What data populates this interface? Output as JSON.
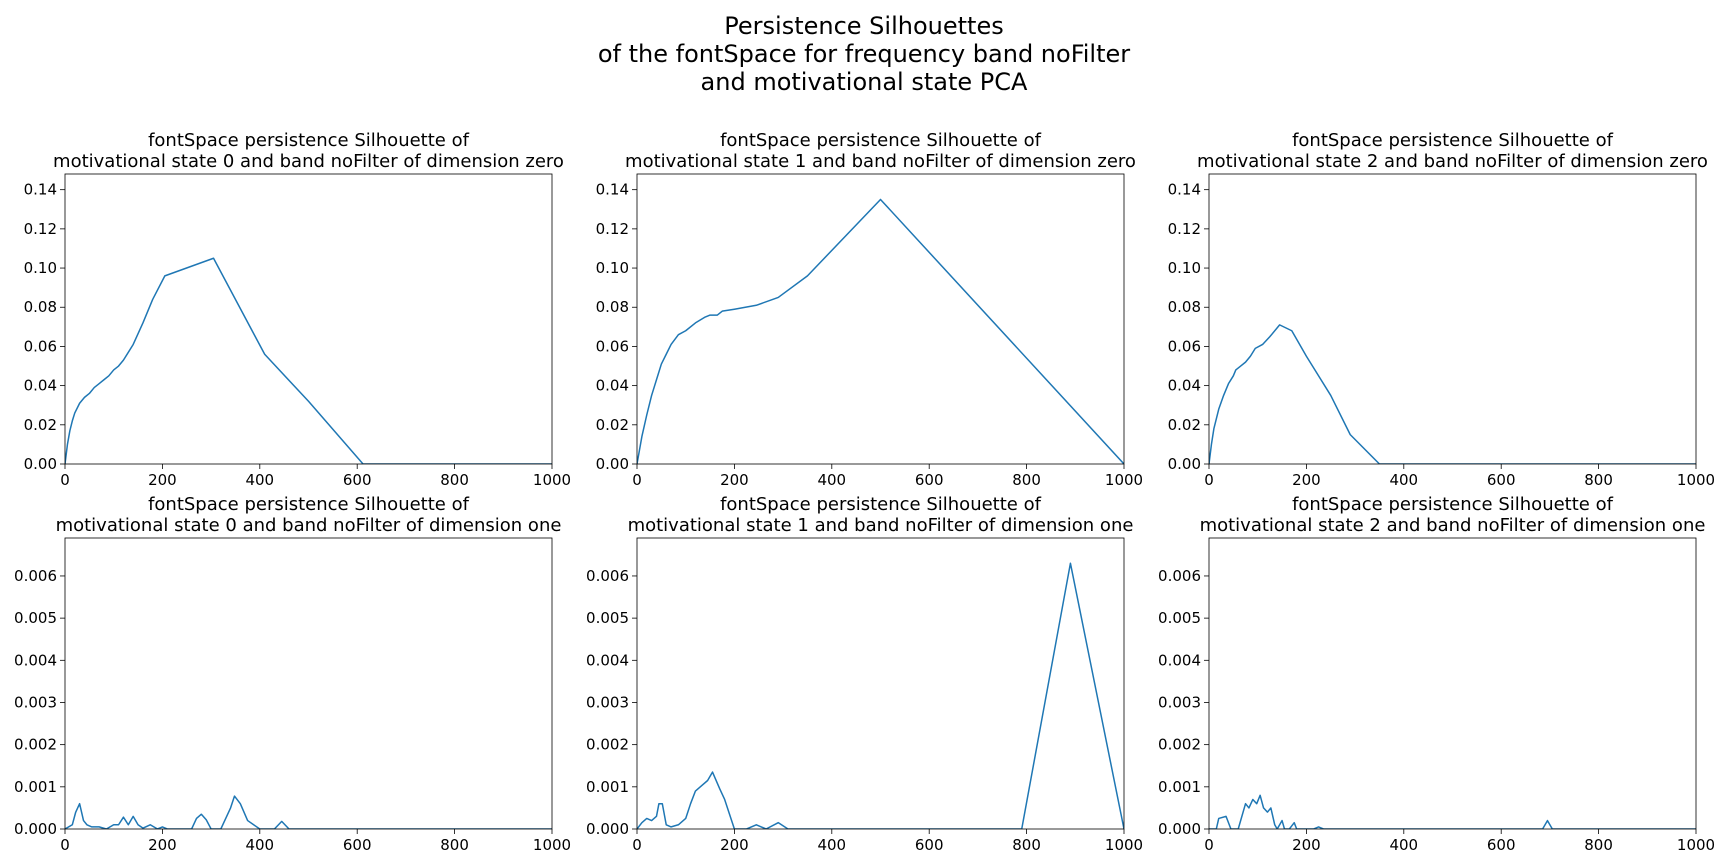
{
  "figure": {
    "suptitle_lines": [
      "Persistence Silhouettes",
      "of the fontSpace for frequency band noFilter",
      "and motivational state PCA"
    ],
    "line_color": "#1f77b4"
  },
  "chart_data": [
    {
      "type": "line",
      "title_lines": [
        "fontSpace persistence Silhouette of",
        "motivational state 0 and band noFilter of dimension zero"
      ],
      "xlim": [
        0,
        1000
      ],
      "ylim": [
        0,
        0.148
      ],
      "xticks": [
        0,
        200,
        400,
        600,
        800,
        1000
      ],
      "xtick_labels": [
        "0",
        "200",
        "400",
        "600",
        "800",
        "1000"
      ],
      "yticks": [
        0,
        0.02,
        0.04,
        0.06,
        0.08,
        0.1,
        0.12,
        0.14
      ],
      "ytick_labels": [
        "0.00",
        "0.02",
        "0.04",
        "0.06",
        "0.08",
        "0.10",
        "0.12",
        "0.14"
      ],
      "series": [
        {
          "x": [
            0,
            5,
            10,
            15,
            20,
            30,
            40,
            50,
            60,
            70,
            80,
            90,
            100,
            110,
            120,
            140,
            160,
            180,
            205,
            305,
            410,
            500,
            612,
            1000
          ],
          "y": [
            0,
            0.01,
            0.017,
            0.022,
            0.026,
            0.031,
            0.034,
            0.036,
            0.039,
            0.041,
            0.043,
            0.045,
            0.048,
            0.05,
            0.053,
            0.061,
            0.072,
            0.084,
            0.096,
            0.105,
            0.056,
            0.032,
            0,
            0
          ]
        }
      ]
    },
    {
      "type": "line",
      "title_lines": [
        "fontSpace persistence Silhouette of",
        "motivational state 1 and band noFilter of dimension zero"
      ],
      "xlim": [
        0,
        1000
      ],
      "ylim": [
        0,
        0.148
      ],
      "xticks": [
        0,
        200,
        400,
        600,
        800,
        1000
      ],
      "xtick_labels": [
        "0",
        "200",
        "400",
        "600",
        "800",
        "1000"
      ],
      "yticks": [
        0,
        0.02,
        0.04,
        0.06,
        0.08,
        0.1,
        0.12,
        0.14
      ],
      "ytick_labels": [
        "0.00",
        "0.02",
        "0.04",
        "0.06",
        "0.08",
        "0.10",
        "0.12",
        "0.14"
      ],
      "series": [
        {
          "x": [
            0,
            10,
            20,
            30,
            40,
            50,
            60,
            70,
            85,
            100,
            120,
            140,
            150,
            165,
            175,
            200,
            245,
            290,
            350,
            500,
            1000
          ],
          "y": [
            0,
            0.014,
            0.025,
            0.035,
            0.043,
            0.051,
            0.056,
            0.061,
            0.066,
            0.068,
            0.072,
            0.075,
            0.076,
            0.076,
            0.078,
            0.079,
            0.081,
            0.085,
            0.096,
            0.135,
            0
          ]
        }
      ]
    },
    {
      "type": "line",
      "title_lines": [
        "fontSpace persistence Silhouette of",
        "motivational state 2 and band noFilter of dimension zero"
      ],
      "xlim": [
        0,
        1000
      ],
      "ylim": [
        0,
        0.148
      ],
      "xticks": [
        0,
        200,
        400,
        600,
        800,
        1000
      ],
      "xtick_labels": [
        "0",
        "200",
        "400",
        "600",
        "800",
        "1000"
      ],
      "yticks": [
        0,
        0.02,
        0.04,
        0.06,
        0.08,
        0.1,
        0.12,
        0.14
      ],
      "ytick_labels": [
        "0.00",
        "0.02",
        "0.04",
        "0.06",
        "0.08",
        "0.10",
        "0.12",
        "0.14"
      ],
      "series": [
        {
          "x": [
            0,
            5,
            10,
            20,
            30,
            40,
            50,
            55,
            65,
            75,
            85,
            95,
            110,
            125,
            145,
            170,
            200,
            250,
            290,
            350,
            1000
          ],
          "y": [
            0,
            0.01,
            0.018,
            0.028,
            0.035,
            0.041,
            0.045,
            0.048,
            0.05,
            0.052,
            0.055,
            0.059,
            0.061,
            0.065,
            0.071,
            0.068,
            0.055,
            0.035,
            0.015,
            0,
            0
          ]
        }
      ]
    },
    {
      "type": "line",
      "title_lines": [
        "fontSpace persistence Silhouette of",
        "motivational state 0 and band noFilter of dimension one"
      ],
      "xlim": [
        0,
        1000
      ],
      "ylim": [
        0,
        0.0069
      ],
      "xticks": [
        0,
        200,
        400,
        600,
        800,
        1000
      ],
      "xtick_labels": [
        "0",
        "200",
        "400",
        "600",
        "800",
        "1000"
      ],
      "yticks": [
        0,
        0.001,
        0.002,
        0.003,
        0.004,
        0.005,
        0.006
      ],
      "ytick_labels": [
        "0.000",
        "0.001",
        "0.002",
        "0.003",
        "0.004",
        "0.005",
        "0.006"
      ],
      "series": [
        {
          "x": [
            0,
            15,
            22,
            30,
            38,
            45,
            55,
            70,
            85,
            100,
            110,
            120,
            130,
            140,
            150,
            160,
            175,
            190,
            200,
            210,
            260,
            270,
            280,
            290,
            300,
            320,
            340,
            348,
            360,
            375,
            400,
            430,
            445,
            460,
            480,
            1000
          ],
          "y": [
            0,
            0.0001,
            0.0004,
            0.0006,
            0.0002,
            0.0001,
            5e-05,
            5e-05,
            0,
            0.0001,
            0.0001,
            0.00028,
            0.0001,
            0.0003,
            0.0001,
            2e-05,
            0.0001,
            0,
            5e-05,
            0,
            0,
            0.00025,
            0.00035,
            0.00022,
            0,
            0,
            0.0005,
            0.00078,
            0.0006,
            0.0002,
            0,
            0,
            0.00018,
            0,
            0,
            0
          ]
        }
      ]
    },
    {
      "type": "line",
      "title_lines": [
        "fontSpace persistence Silhouette of",
        "motivational state 1 and band noFilter of dimension one"
      ],
      "xlim": [
        0,
        1000
      ],
      "ylim": [
        0,
        0.0069
      ],
      "xticks": [
        0,
        200,
        400,
        600,
        800,
        1000
      ],
      "xtick_labels": [
        "0",
        "200",
        "400",
        "600",
        "800",
        "1000"
      ],
      "yticks": [
        0,
        0.001,
        0.002,
        0.003,
        0.004,
        0.005,
        0.006
      ],
      "ytick_labels": [
        "0.000",
        "0.001",
        "0.002",
        "0.003",
        "0.004",
        "0.005",
        "0.006"
      ],
      "series": [
        {
          "x": [
            0,
            10,
            20,
            30,
            40,
            45,
            52,
            60,
            70,
            85,
            100,
            110,
            120,
            130,
            145,
            155,
            170,
            180,
            200,
            225,
            245,
            265,
            290,
            310,
            790,
            890,
            1000
          ],
          "y": [
            0,
            0.00015,
            0.00025,
            0.0002,
            0.0003,
            0.0006,
            0.0006,
            0.0001,
            5e-05,
            0.0001,
            0.00025,
            0.0006,
            0.0009,
            0.001,
            0.00115,
            0.00135,
            0.00095,
            0.0007,
            0,
            0,
            0.0001,
            0,
            0.00015,
            0,
            0,
            0.0063,
            0
          ]
        }
      ]
    },
    {
      "type": "line",
      "title_lines": [
        "fontSpace persistence Silhouette of",
        "motivational state 2 and band noFilter of dimension one"
      ],
      "xlim": [
        0,
        1000
      ],
      "ylim": [
        0,
        0.0069
      ],
      "xticks": [
        0,
        200,
        400,
        600,
        800,
        1000
      ],
      "xtick_labels": [
        "0",
        "200",
        "400",
        "600",
        "800",
        "1000"
      ],
      "yticks": [
        0,
        0.001,
        0.002,
        0.003,
        0.004,
        0.005,
        0.006
      ],
      "ytick_labels": [
        "0.000",
        "0.001",
        "0.002",
        "0.003",
        "0.004",
        "0.005",
        "0.006"
      ],
      "series": [
        {
          "x": [
            0,
            15,
            20,
            35,
            45,
            60,
            75,
            82,
            90,
            98,
            105,
            112,
            120,
            127,
            135,
            140,
            150,
            155,
            165,
            175,
            180,
            195,
            215,
            225,
            235,
            685,
            695,
            705,
            1000
          ],
          "y": [
            0,
            0,
            0.00025,
            0.0003,
            0,
            0,
            0.0006,
            0.0005,
            0.0007,
            0.0006,
            0.0008,
            0.0005,
            0.0004,
            0.0005,
            0.0001,
            0,
            0.0002,
            0,
            0,
            0.00015,
            0,
            0,
            0,
            5e-05,
            0,
            0,
            0.0002,
            0,
            0
          ]
        }
      ]
    }
  ]
}
